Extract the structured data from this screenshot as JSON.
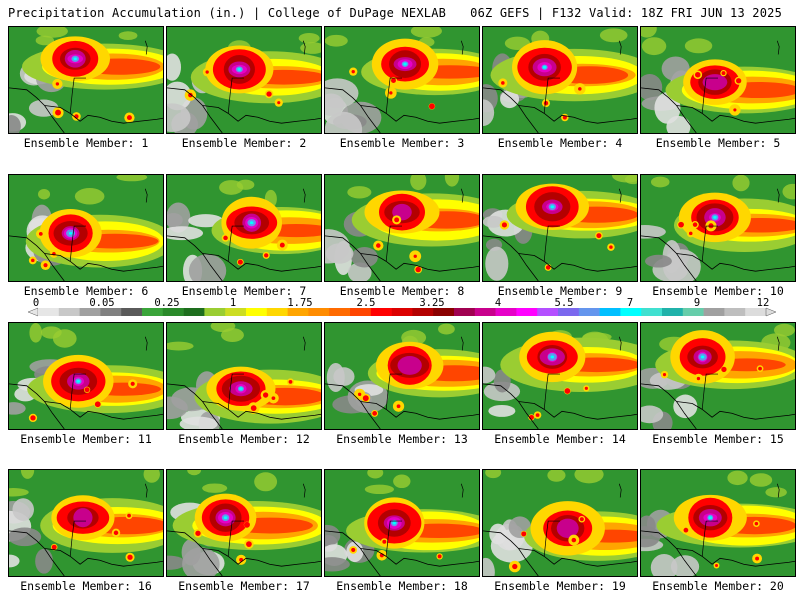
{
  "header": {
    "title_left": "Precipitation Accumulation (in.) | College of DuPage NEXLAB",
    "title_right": "06Z GEFS | F132 Valid: 18Z FRI JUN 13 2025"
  },
  "panels": [
    {
      "label": "Ensemble Member: 1"
    },
    {
      "label": "Ensemble Member: 2"
    },
    {
      "label": "Ensemble Member: 3"
    },
    {
      "label": "Ensemble Member: 4"
    },
    {
      "label": "Ensemble Member: 5"
    },
    {
      "label": "Ensemble Member: 6"
    },
    {
      "label": "Ensemble Member: 7"
    },
    {
      "label": "Ensemble Member: 8"
    },
    {
      "label": "Ensemble Member: 9"
    },
    {
      "label": "Ensemble Member: 10"
    },
    {
      "label": "Ensemble Member: 11"
    },
    {
      "label": "Ensemble Member: 12"
    },
    {
      "label": "Ensemble Member: 13"
    },
    {
      "label": "Ensemble Member: 14"
    },
    {
      "label": "Ensemble Member: 15"
    },
    {
      "label": "Ensemble Member: 16"
    },
    {
      "label": "Ensemble Member: 17"
    },
    {
      "label": "Ensemble Member: 18"
    },
    {
      "label": "Ensemble Member: 19"
    },
    {
      "label": "Ensemble Member: 20"
    }
  ],
  "colorbar": {
    "tick_labels": [
      "0",
      "0.05",
      "0.25",
      "1",
      "1.75",
      "2.5",
      "3.25",
      "4",
      "5.5",
      "7",
      "9",
      "12"
    ],
    "colors": [
      "#e6e6e6",
      "#c8c8c8",
      "#a0a0a0",
      "#808080",
      "#5a5a5a",
      "#3aa43a",
      "#2a8a2a",
      "#1e6e1e",
      "#9acd32",
      "#ccdd22",
      "#ffff00",
      "#ffd700",
      "#ffa500",
      "#ff8c00",
      "#ff6a00",
      "#ff4500",
      "#ff0000",
      "#dc0000",
      "#b40000",
      "#8b0000",
      "#a00050",
      "#c8008c",
      "#e600c8",
      "#ff00ff",
      "#b44fff",
      "#7b68ee",
      "#6495ed",
      "#00bfff",
      "#00ffff",
      "#40e0d0",
      "#20b2aa",
      "#66cdaa",
      "#a0a0a0",
      "#bebebe",
      "#dcdcdc"
    ]
  }
}
